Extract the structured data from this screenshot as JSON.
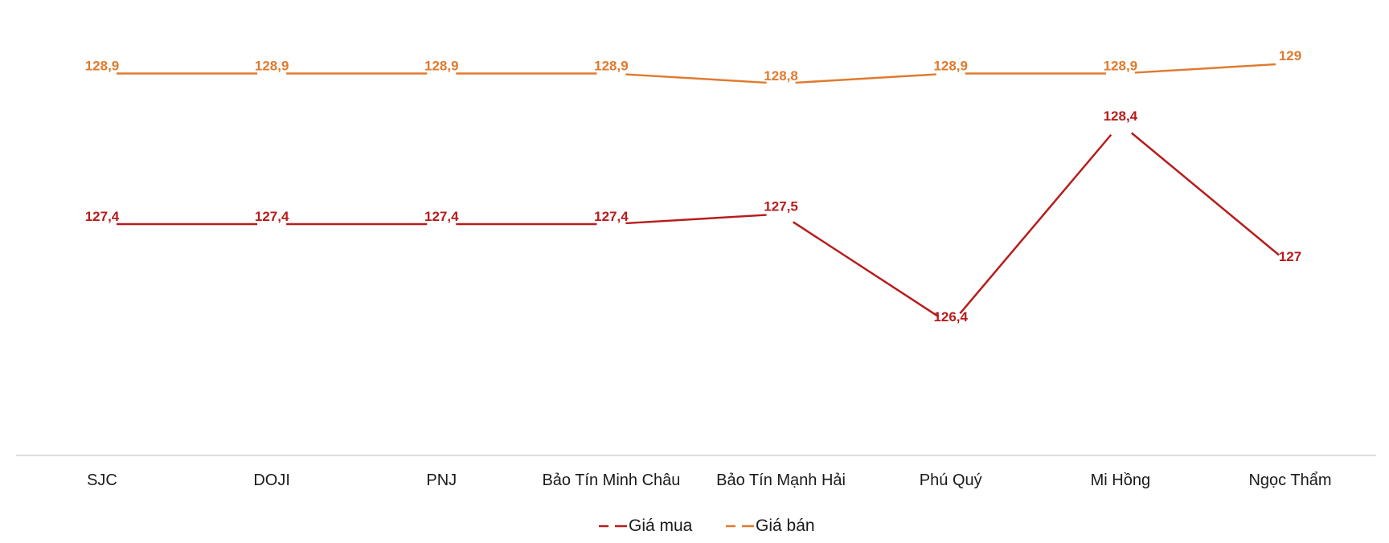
{
  "chart_data": {
    "type": "line",
    "title": "",
    "xlabel": "",
    "ylabel": "",
    "categories": [
      "SJC",
      "DOJI",
      "PNJ",
      "Bảo Tín Minh Châu",
      "Bảo Tín Mạnh Hải",
      "Phú Quý",
      "Mi Hồng",
      "Ngọc Thẩm"
    ],
    "series": [
      {
        "name": "Giá mua",
        "color": "#b71c1c",
        "values": [
          127.4,
          127.4,
          127.4,
          127.4,
          127.5,
          126.4,
          128.4,
          127
        ],
        "labels": [
          "127,4",
          "127,4",
          "127,4",
          "127,4",
          "127,5",
          "126,4",
          "128,4",
          "127"
        ]
      },
      {
        "name": "Giá bán",
        "color": "#e07a2e",
        "values": [
          128.9,
          128.9,
          128.9,
          128.9,
          128.8,
          128.9,
          128.9,
          129
        ],
        "labels": [
          "128,9",
          "128,9",
          "128,9",
          "128,9",
          "128,8",
          "128,9",
          "128,9",
          "129"
        ]
      }
    ],
    "grid": false,
    "legend_position": "bottom"
  }
}
